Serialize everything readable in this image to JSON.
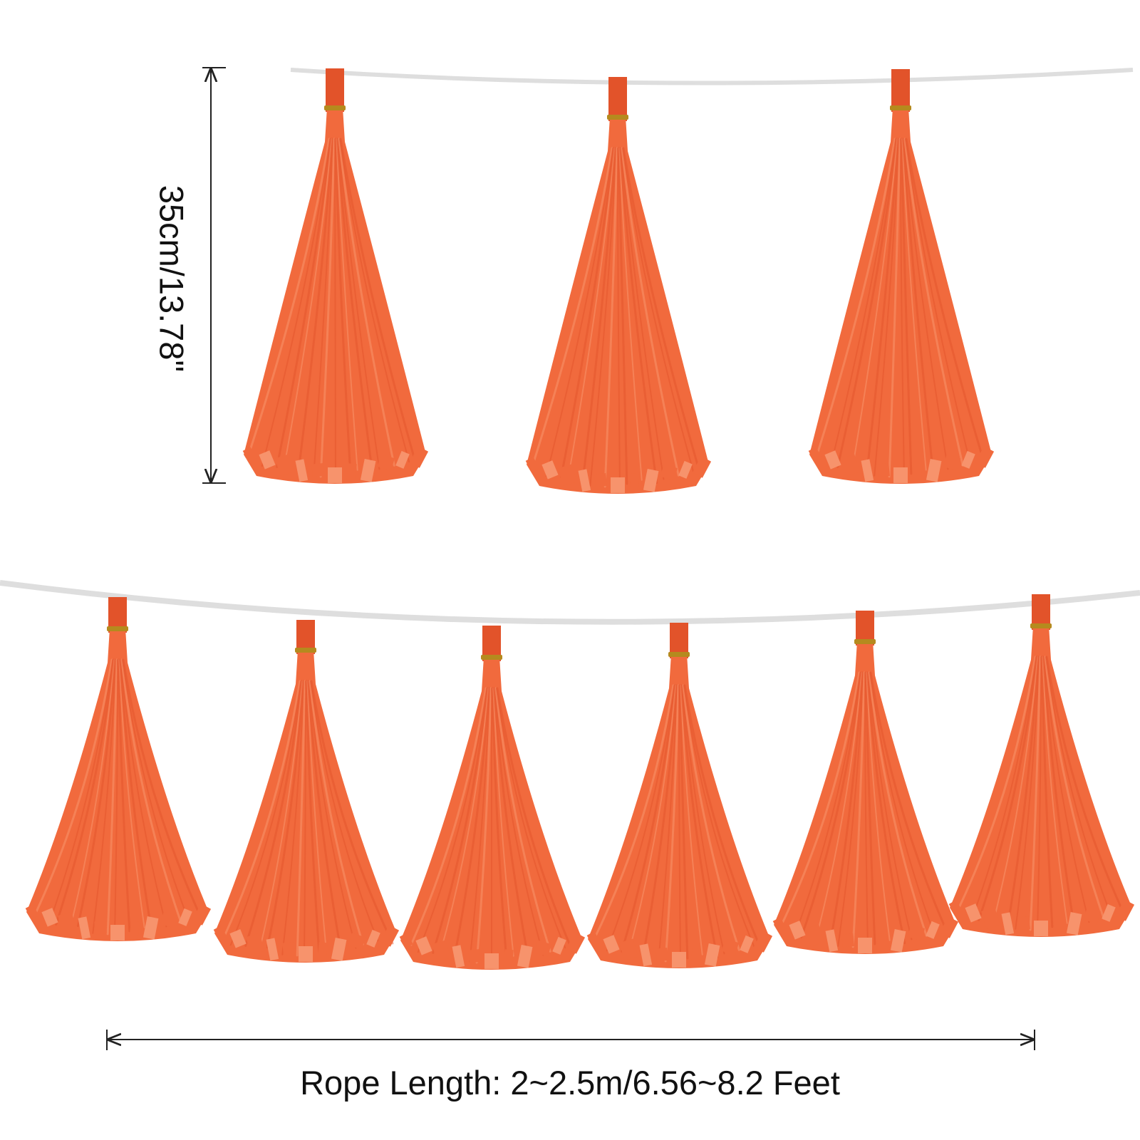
{
  "image": {
    "background_color": "#ffffff",
    "rope_color": "#dedede",
    "tassel_color": "#f16a3d",
    "tassel_dark_color": "#e2532a",
    "tassel_light_color": "#f7936c",
    "clip_color": "#b58a1e",
    "dimension_line_color": "#222222"
  },
  "garlands": [
    {
      "name": "top-garland",
      "tassel_count": 3
    },
    {
      "name": "bottom-garland",
      "tassel_count": 6
    }
  ],
  "dimensions": {
    "height_label": "35cm/13.78\"",
    "rope_length_label": "Rope Length: 2~2.5m/6.56~8.2 Feet"
  }
}
